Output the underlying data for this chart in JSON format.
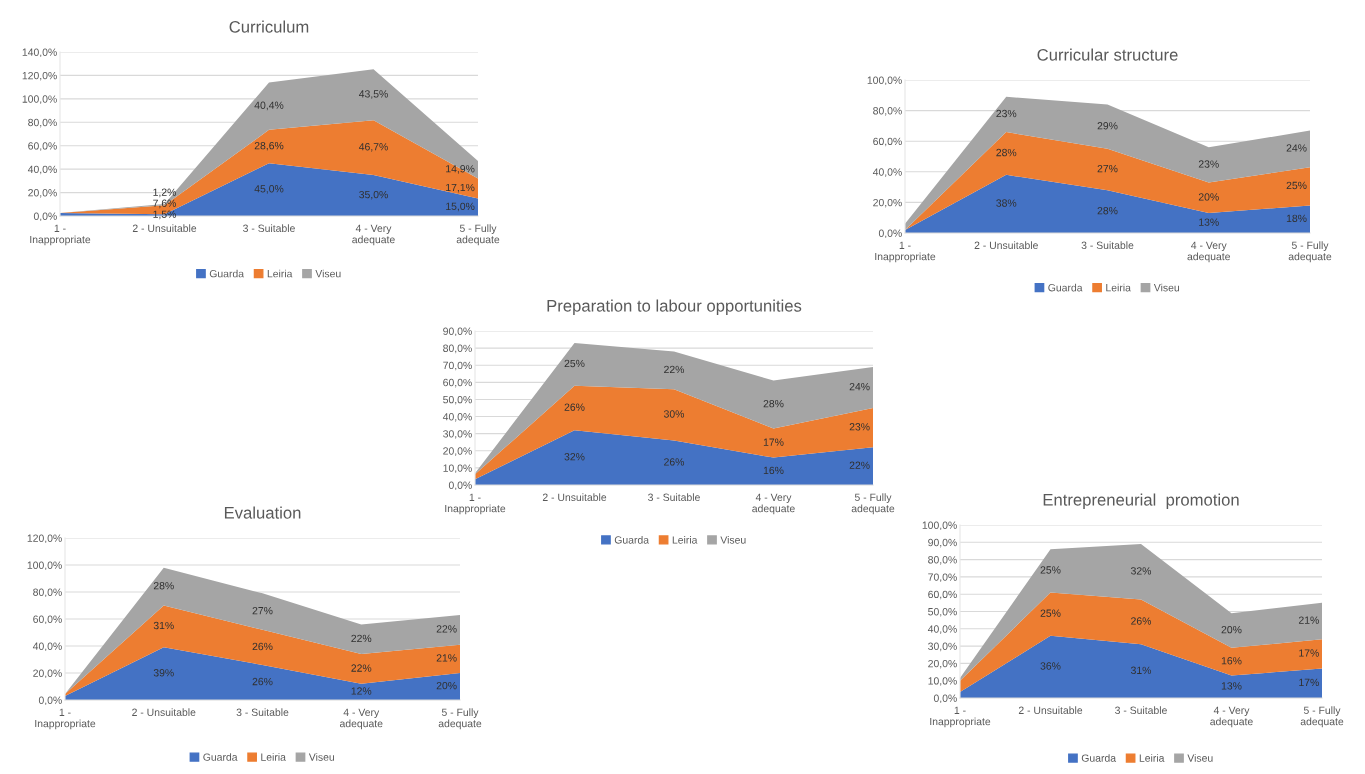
{
  "chart_data": [
    {
      "type": "area",
      "stacked": true,
      "title": "Curriculum",
      "categories": [
        "1 -\nInappropriate",
        "2 - Unsuitable",
        "3 - Suitable",
        "4 - Very\nadequate",
        "5 - Fully\nadequate"
      ],
      "ylim": [
        0,
        140
      ],
      "yticks": [
        {
          "value": 0,
          "label": "0,0%"
        },
        {
          "value": 20,
          "label": "20,0%"
        },
        {
          "value": 40,
          "label": "40,0%"
        },
        {
          "value": 60,
          "label": "60,0%"
        },
        {
          "value": 80,
          "label": "80,0%"
        },
        {
          "value": 100,
          "label": "100,0%"
        },
        {
          "value": 120,
          "label": "120,0%"
        },
        {
          "value": 140,
          "label": "140,0%"
        }
      ],
      "grid": "y",
      "legend": "bottom",
      "series": [
        {
          "name": "Guarda",
          "color": "#4472c4",
          "values": [
            2.5,
            1.5,
            45.0,
            35.0,
            15.0
          ],
          "value_labels": [
            null,
            "1,5%",
            "45,0%",
            "35,0%",
            "15,0%"
          ]
        },
        {
          "name": "Leiria",
          "color": "#ed7d31",
          "values": [
            0.0,
            7.6,
            28.6,
            46.7,
            17.1
          ],
          "value_labels": [
            null,
            "7,6%",
            "28,6%",
            "46,7%",
            "17,1%"
          ]
        },
        {
          "name": "Viseu",
          "color": "#a5a5a5",
          "values": [
            0.0,
            1.2,
            40.4,
            43.5,
            14.9
          ],
          "value_labels": [
            null,
            "1,2%",
            "40,4%",
            "43,5%",
            "14,9%"
          ]
        }
      ]
    },
    {
      "type": "area",
      "stacked": true,
      "title": "Curricular structure",
      "categories": [
        "1 -\nInappropriate",
        "2 - Unsuitable",
        "3 - Suitable",
        "4 - Very\nadequate",
        "5 - Fully\nadequate"
      ],
      "ylim": [
        0,
        100
      ],
      "yticks": [
        {
          "value": 0,
          "label": "0,0%"
        },
        {
          "value": 20,
          "label": "20,0%"
        },
        {
          "value": 40,
          "label": "40,0%"
        },
        {
          "value": 60,
          "label": "60,0%"
        },
        {
          "value": 80,
          "label": "80,0%"
        },
        {
          "value": 100,
          "label": "100,0%"
        }
      ],
      "grid": "y",
      "legend": "bottom",
      "series": [
        {
          "name": "Guarda",
          "color": "#4472c4",
          "values": [
            2,
            38,
            28,
            13,
            18
          ],
          "value_labels": [
            null,
            "38%",
            "28%",
            "13%",
            "18%"
          ]
        },
        {
          "name": "Leiria",
          "color": "#ed7d31",
          "values": [
            0,
            28,
            27,
            20,
            25
          ],
          "value_labels": [
            null,
            "28%",
            "27%",
            "20%",
            "25%"
          ]
        },
        {
          "name": "Viseu",
          "color": "#a5a5a5",
          "values": [
            4,
            23,
            29,
            23,
            24
          ],
          "value_labels": [
            null,
            "23%",
            "29%",
            "23%",
            "24%"
          ]
        }
      ]
    },
    {
      "type": "area",
      "stacked": true,
      "title": "Preparation to labour opportunities",
      "categories": [
        "1 -\nInappropriate",
        "2 - Unsuitable",
        "3 - Suitable",
        "4 - Very\nadequate",
        "5 - Fully\nadequate"
      ],
      "ylim": [
        0,
        90
      ],
      "yticks": [
        {
          "value": 0,
          "label": "0,0%"
        },
        {
          "value": 10,
          "label": "10,0%"
        },
        {
          "value": 20,
          "label": "20,0%"
        },
        {
          "value": 30,
          "label": "30,0%"
        },
        {
          "value": 40,
          "label": "40,0%"
        },
        {
          "value": 50,
          "label": "50,0%"
        },
        {
          "value": 60,
          "label": "60,0%"
        },
        {
          "value": 70,
          "label": "70,0%"
        },
        {
          "value": 80,
          "label": "80,0%"
        },
        {
          "value": 90,
          "label": "90,0%"
        }
      ],
      "grid": "y",
      "legend": "bottom",
      "series": [
        {
          "name": "Guarda",
          "color": "#4472c4",
          "values": [
            3.3,
            32,
            26,
            16,
            22
          ],
          "value_labels": [
            null,
            "32%",
            "26%",
            "16%",
            "22%"
          ]
        },
        {
          "name": "Leiria",
          "color": "#ed7d31",
          "values": [
            3.0,
            26,
            30,
            17,
            23
          ],
          "value_labels": [
            null,
            "26%",
            "30%",
            "17%",
            "23%"
          ]
        },
        {
          "name": "Viseu",
          "color": "#a5a5a5",
          "values": [
            0.6,
            25,
            22,
            28,
            24
          ],
          "value_labels": [
            null,
            "25%",
            "22%",
            "28%",
            "24%"
          ]
        }
      ]
    },
    {
      "type": "area",
      "stacked": true,
      "title": "Evaluation",
      "categories": [
        "1 -\nInappropriate",
        "2 - Unsuitable",
        "3 - Suitable",
        "4 - Very\nadequate",
        "5 - Fully\nadequate"
      ],
      "ylim": [
        0,
        120
      ],
      "yticks": [
        {
          "value": 0,
          "label": "0,0%"
        },
        {
          "value": 20,
          "label": "20,0%"
        },
        {
          "value": 40,
          "label": "40,0%"
        },
        {
          "value": 60,
          "label": "60,0%"
        },
        {
          "value": 80,
          "label": "80,0%"
        },
        {
          "value": 100,
          "label": "100,0%"
        },
        {
          "value": 120,
          "label": "120,0%"
        }
      ],
      "grid": "y",
      "legend": "bottom",
      "series": [
        {
          "name": "Guarda",
          "color": "#4472c4",
          "values": [
            3.0,
            39,
            26,
            12,
            20
          ],
          "value_labels": [
            null,
            "39%",
            "26%",
            "12%",
            "20%"
          ]
        },
        {
          "name": "Leiria",
          "color": "#ed7d31",
          "values": [
            1.5,
            31,
            26,
            22,
            21
          ],
          "value_labels": [
            null,
            "31%",
            "26%",
            "22%",
            "21%"
          ]
        },
        {
          "name": "Viseu",
          "color": "#a5a5a5",
          "values": [
            0.0,
            28,
            27,
            22,
            22
          ],
          "value_labels": [
            null,
            "28%",
            "27%",
            "22%",
            "22%"
          ]
        }
      ]
    },
    {
      "type": "area",
      "stacked": true,
      "title": "Entrepreneurial  promotion",
      "categories": [
        "1 -\nInappropriate",
        "2 - Unsuitable",
        "3 - Suitable",
        "4 - Very\nadequate",
        "5 - Fully\nadequate"
      ],
      "ylim": [
        0,
        100
      ],
      "yticks": [
        {
          "value": 0,
          "label": "0,0%"
        },
        {
          "value": 10,
          "label": "10,0%"
        },
        {
          "value": 20,
          "label": "20,0%"
        },
        {
          "value": 30,
          "label": "30,0%"
        },
        {
          "value": 40,
          "label": "40,0%"
        },
        {
          "value": 50,
          "label": "50,0%"
        },
        {
          "value": 60,
          "label": "60,0%"
        },
        {
          "value": 70,
          "label": "70,0%"
        },
        {
          "value": 80,
          "label": "80,0%"
        },
        {
          "value": 90,
          "label": "90,0%"
        },
        {
          "value": 100,
          "label": "100,0%"
        }
      ],
      "grid": "y",
      "legend": "bottom",
      "series": [
        {
          "name": "Guarda",
          "color": "#4472c4",
          "values": [
            3.5,
            36,
            31,
            13,
            17
          ],
          "value_labels": [
            null,
            "36%",
            "31%",
            "13%",
            "17%"
          ]
        },
        {
          "name": "Leiria",
          "color": "#ed7d31",
          "values": [
            6.5,
            25,
            26,
            16,
            17
          ],
          "value_labels": [
            null,
            "25%",
            "26%",
            "16%",
            "17%"
          ]
        },
        {
          "name": "Viseu",
          "color": "#a5a5a5",
          "values": [
            1.5,
            25,
            32,
            20,
            21
          ],
          "value_labels": [
            null,
            "25%",
            "32%",
            "20%",
            "21%"
          ]
        }
      ]
    }
  ]
}
